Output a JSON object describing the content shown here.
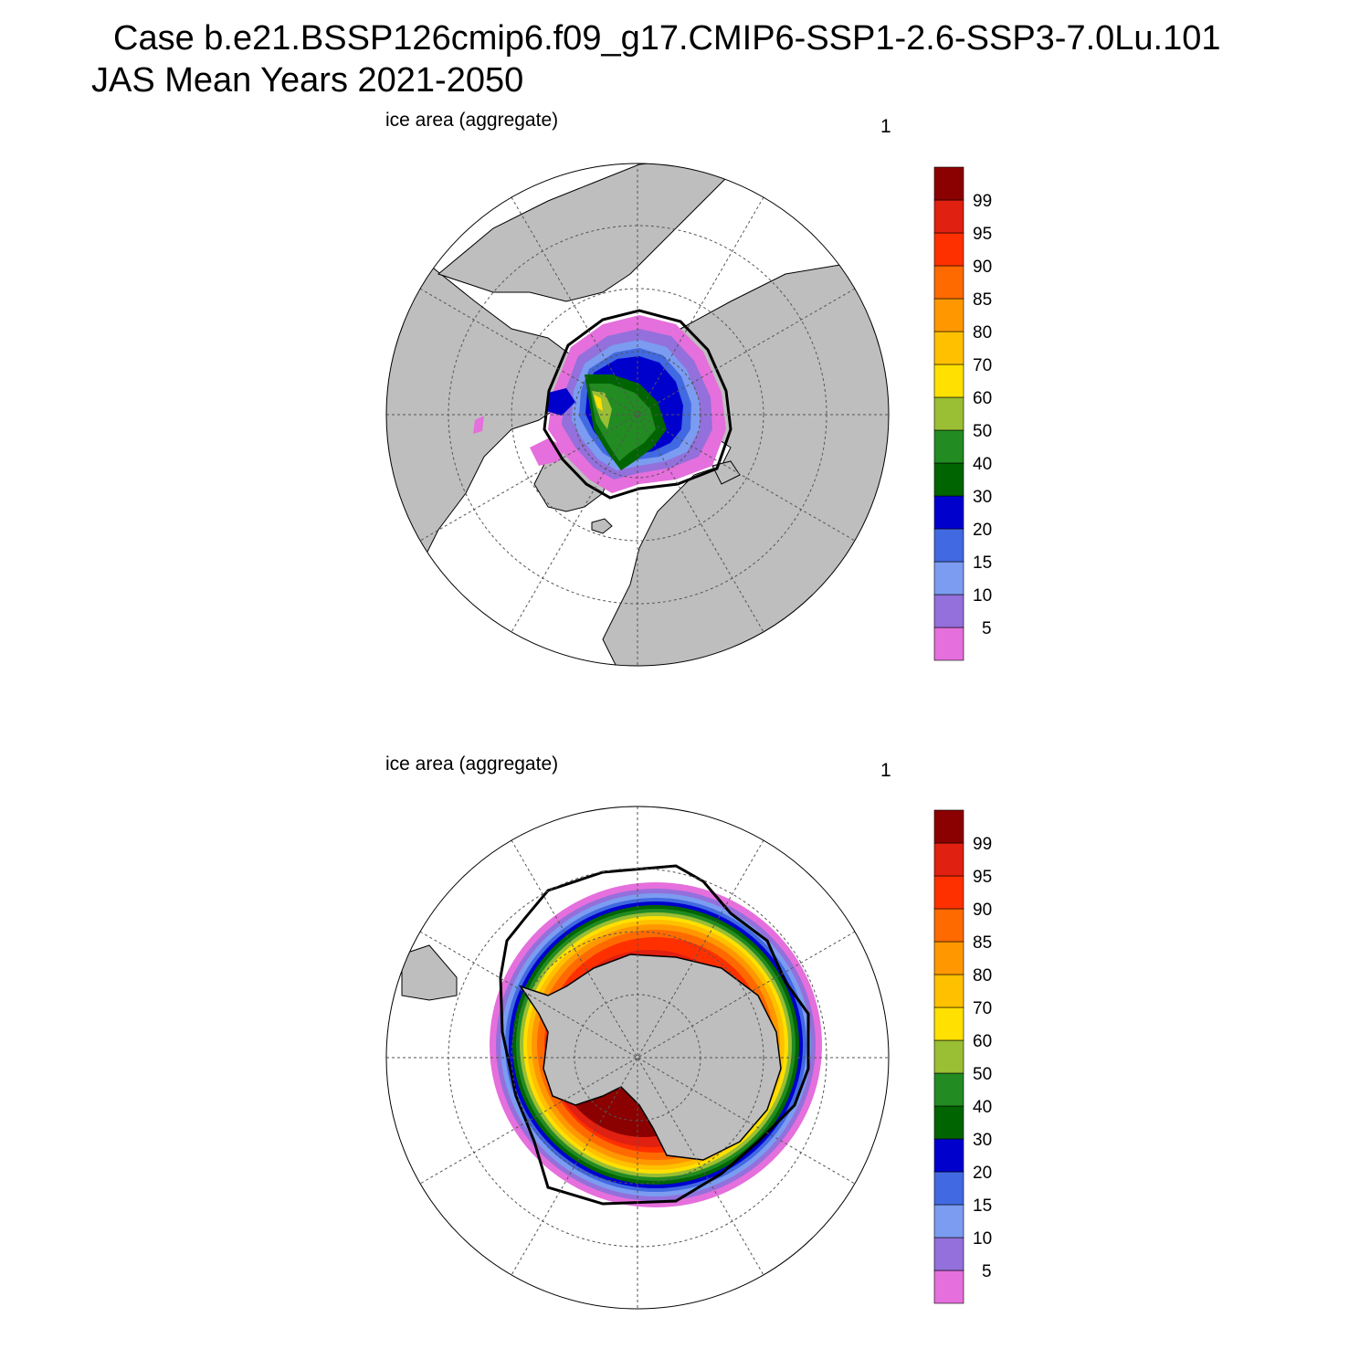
{
  "title": {
    "line1": "Case b.e21.BSSP126cmip6.f09_g17.CMIP6-SSP1-2.6-SSP3-7.0Lu.101",
    "line2": "JAS Mean   Years 2021-2050"
  },
  "panels": [
    {
      "id": "north",
      "label": "ice area  (aggregate)",
      "index": "1",
      "hemisphere": "Northern"
    },
    {
      "id": "south",
      "label": "ice area  (aggregate)",
      "index": "1",
      "hemisphere": "Southern"
    }
  ],
  "colorbar": {
    "levels": [
      "5",
      "10",
      "15",
      "20",
      "30",
      "40",
      "50",
      "60",
      "70",
      "80",
      "85",
      "90",
      "95",
      "99"
    ],
    "colors": [
      "#e56fdc",
      "#9370db",
      "#7b9cf0",
      "#4169e1",
      "#0000cd",
      "#006400",
      "#228b22",
      "#9abe34",
      "#ffe000",
      "#ffc000",
      "#ff9800",
      "#ff6a00",
      "#ff3000",
      "#e02010",
      "#8b0000"
    ]
  },
  "map_style": {
    "land": "#bebebe",
    "ocean": "#ffffff",
    "grid": "#555555"
  }
}
